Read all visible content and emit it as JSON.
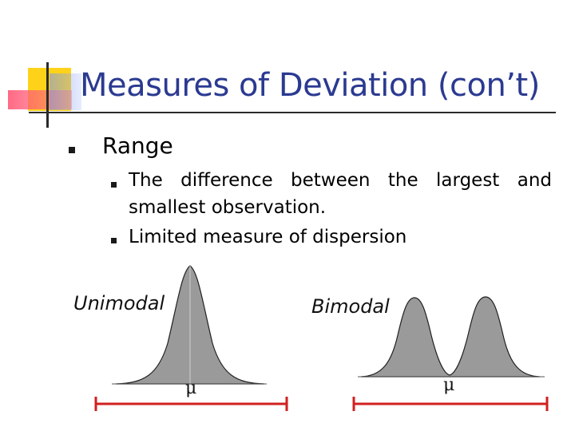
{
  "slide": {
    "title": "Measures of Deviation (con’t)",
    "bullet": "Range",
    "sub_bullets": [
      {
        "line1": "The difference between the largest and",
        "line2": "smallest observation."
      },
      {
        "line1": "Limited measure of dispersion"
      }
    ]
  },
  "figures": {
    "unimodal": {
      "label": "Unimodal",
      "mu": "μ"
    },
    "bimodal": {
      "label": "Bimodal",
      "mu": "μ"
    }
  },
  "colors": {
    "title": "#2b3a91",
    "curve_fill": "#9a9a9a",
    "range_bar": "#d11f1f"
  }
}
